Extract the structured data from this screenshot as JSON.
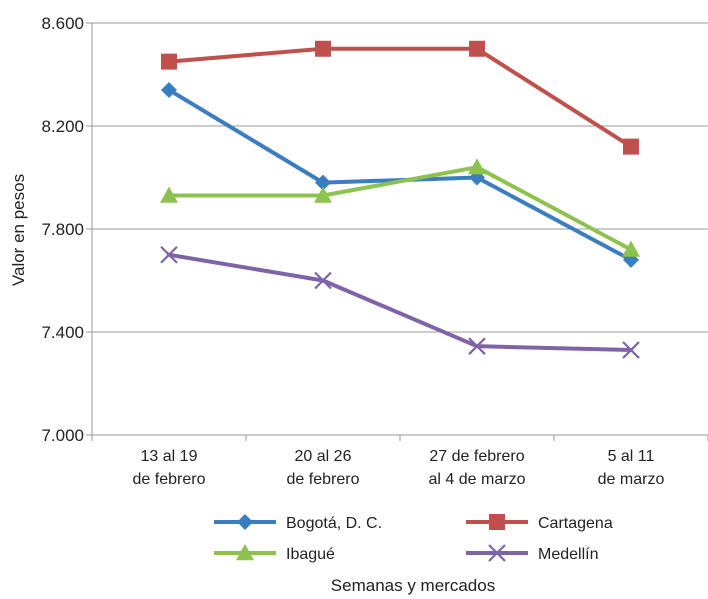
{
  "chart_data": {
    "type": "line",
    "title": "",
    "xlabel": "Semanas y mercados",
    "ylabel": "Valor en pesos",
    "ylim": [
      7000,
      8600
    ],
    "y_ticks": [
      {
        "value": 7000,
        "label": "7.000"
      },
      {
        "value": 7400,
        "label": "7.400"
      },
      {
        "value": 7800,
        "label": "7.800"
      },
      {
        "value": 8200,
        "label": "8.200"
      },
      {
        "value": 8600,
        "label": "8.600"
      }
    ],
    "grid": true,
    "legend_position": "bottom",
    "categories": [
      {
        "line1": "13 al 19",
        "line2": "de febrero"
      },
      {
        "line1": "20 al 26",
        "line2": "de febrero"
      },
      {
        "line1": "27 de febrero",
        "line2": "al 4 de marzo"
      },
      {
        "line1": "5 al 11",
        "line2": "de marzo"
      }
    ],
    "series": [
      {
        "name": "Bogotá, D. C.",
        "color": "#3a7dc1",
        "marker": "diamond",
        "values": [
          8340,
          7980,
          8000,
          7680
        ]
      },
      {
        "name": "Cartagena",
        "color": "#c0504d",
        "marker": "square",
        "values": [
          8450,
          8500,
          8500,
          8120
        ]
      },
      {
        "name": "Ibagué",
        "color": "#8dc24f",
        "marker": "triangle",
        "values": [
          7930,
          7930,
          8040,
          7720
        ]
      },
      {
        "name": "Medellín",
        "color": "#7f63a8",
        "marker": "x",
        "values": [
          7700,
          7600,
          7345,
          7330
        ]
      }
    ]
  }
}
